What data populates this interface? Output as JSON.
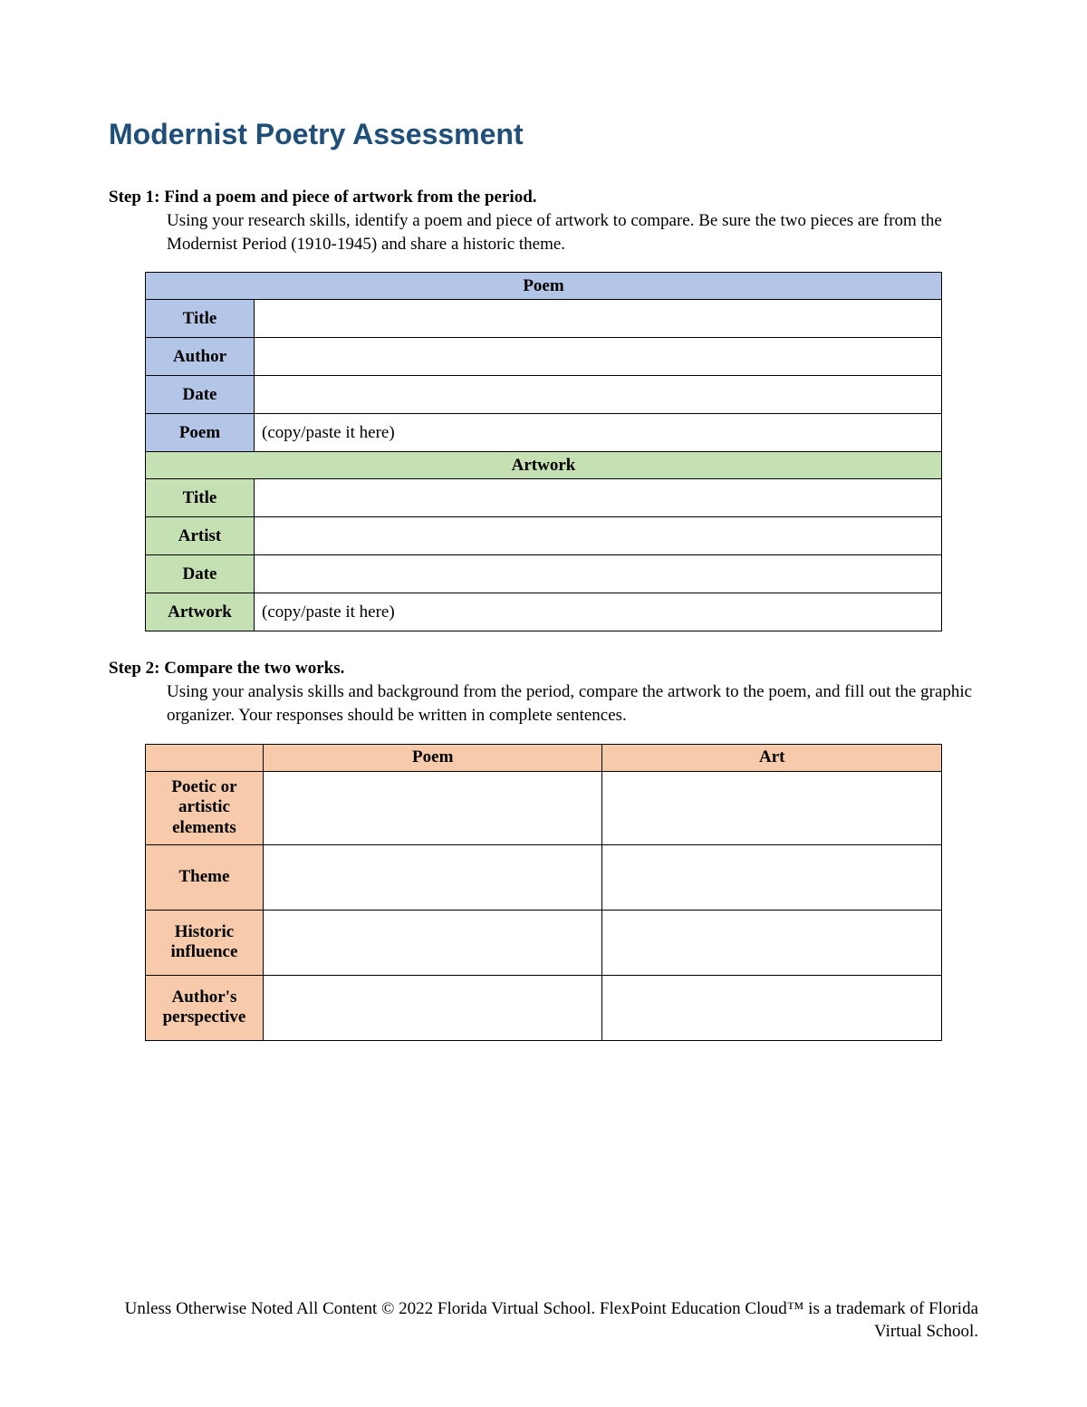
{
  "colors": {
    "title": "#1f4e79",
    "poem_bg": "#b4c6e7",
    "artwork_bg": "#c5e0b3",
    "compare_bg": "#f7caac",
    "border": "#000000",
    "page_bg": "#ffffff",
    "text": "#000000"
  },
  "title": "Modernist Poetry Assessment",
  "step1": {
    "heading": "Step 1: Find a poem and piece of artwork from the period.",
    "body": "Using your research skills, identify a poem and piece of artwork to compare. Be sure the two pieces are from the Modernist Period (1910-1945) and share a historic theme.",
    "poem_section": "Poem",
    "artwork_section": "Artwork",
    "poem_rows": {
      "title_label": "Title",
      "title_value": "",
      "author_label": "Author",
      "author_value": "",
      "date_label": "Date",
      "date_value": "",
      "poem_label": "Poem",
      "poem_value": "(copy/paste it here)"
    },
    "artwork_rows": {
      "title_label": "Title",
      "title_value": "",
      "artist_label": "Artist",
      "artist_value": "",
      "date_label": "Date",
      "date_value": "",
      "artwork_label": "Artwork",
      "artwork_value": "(copy/paste it here)"
    }
  },
  "step2": {
    "heading": "Step 2: Compare the two works.",
    "body": "Using your analysis skills and background from the period, compare the artwork to the poem, and fill out the graphic organizer. Your responses should be written in complete sentences.",
    "col_blank": "",
    "col_poem": "Poem",
    "col_art": "Art",
    "rows": [
      {
        "label": "Poetic or artistic elements",
        "poem": "",
        "art": ""
      },
      {
        "label": "Theme",
        "poem": "",
        "art": ""
      },
      {
        "label": "Historic influence",
        "poem": "",
        "art": ""
      },
      {
        "label": "Author's perspective",
        "poem": "",
        "art": ""
      }
    ]
  },
  "footer": "Unless Otherwise Noted All Content © 2022 Florida Virtual School. FlexPoint Education Cloud™ is a trademark of Florida Virtual School."
}
